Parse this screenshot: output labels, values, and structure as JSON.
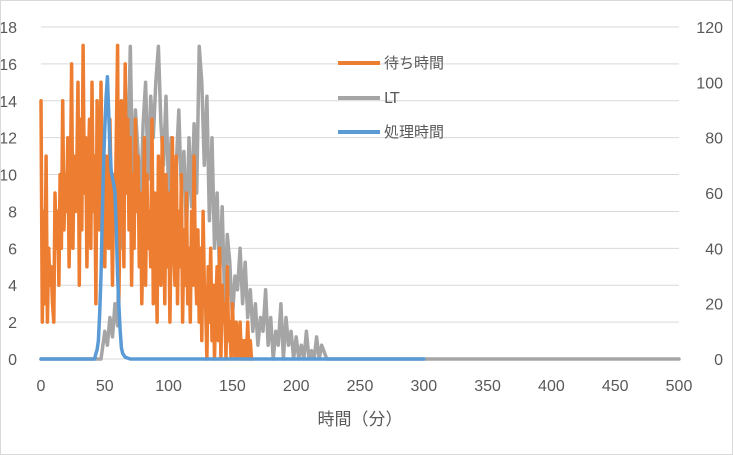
{
  "chart_data": {
    "type": "line",
    "title": "",
    "xlabel": "時間（分）",
    "ylabel": "",
    "ylabel_right": "",
    "xlim": [
      0,
      500
    ],
    "ylim": [
      0,
      18
    ],
    "ylim_right": [
      0,
      120
    ],
    "x_ticks": [
      0,
      50,
      100,
      150,
      200,
      250,
      300,
      350,
      400,
      450,
      500
    ],
    "y_ticks_left": [
      0,
      2,
      4,
      6,
      8,
      10,
      12,
      14,
      16,
      18
    ],
    "y_ticks_right": [
      0,
      20,
      40,
      60,
      80,
      100,
      120
    ],
    "grid": true,
    "legend_position": "top-center",
    "series": [
      {
        "name": "待ち時間",
        "axis": "left",
        "color": "#ED7D31",
        "x": [
          0,
          1,
          2,
          3,
          4,
          5,
          6,
          7,
          8,
          9,
          10,
          11,
          12,
          13,
          14,
          15,
          16,
          17,
          18,
          19,
          20,
          21,
          22,
          23,
          24,
          25,
          26,
          27,
          28,
          29,
          30,
          31,
          32,
          33,
          34,
          35,
          36,
          37,
          38,
          39,
          40,
          41,
          42,
          43,
          44,
          45,
          46,
          47,
          48,
          49,
          50,
          51,
          52,
          53,
          54,
          55,
          56,
          57,
          58,
          59,
          60,
          61,
          62,
          63,
          64,
          65,
          66,
          67,
          68,
          69,
          70,
          71,
          72,
          73,
          74,
          75,
          76,
          77,
          78,
          79,
          80,
          81,
          82,
          83,
          84,
          85,
          86,
          87,
          88,
          89,
          90,
          91,
          92,
          93,
          94,
          95,
          96,
          97,
          98,
          99,
          100,
          101,
          102,
          103,
          104,
          105,
          106,
          107,
          108,
          109,
          110,
          111,
          112,
          113,
          114,
          115,
          116,
          117,
          118,
          119,
          120,
          121,
          122,
          123,
          124,
          125,
          126,
          127,
          128,
          129,
          130,
          131,
          132,
          133,
          134,
          135,
          136,
          137,
          138,
          139,
          140,
          141,
          142,
          143,
          144,
          145,
          146,
          147,
          148,
          149,
          150,
          151,
          152,
          153,
          154,
          155,
          156,
          157,
          158,
          159,
          160,
          161,
          162,
          163,
          164,
          165,
          166
        ],
        "values": [
          14,
          2,
          8,
          3,
          11,
          2,
          6,
          4,
          5,
          3,
          2,
          9,
          6,
          8,
          4,
          10,
          6,
          14,
          7,
          10,
          8,
          12,
          5,
          9,
          16,
          6,
          11,
          8,
          10,
          15,
          4,
          13,
          7,
          17,
          9,
          12,
          5,
          10,
          13,
          6,
          15,
          8,
          11,
          3,
          14,
          10,
          7,
          15,
          9,
          12,
          5,
          11,
          8,
          6,
          13,
          9,
          4,
          10,
          7,
          12,
          17,
          3,
          8,
          14,
          11,
          5,
          16,
          9,
          13,
          7,
          12,
          4,
          10,
          6,
          13,
          8,
          11,
          5,
          9,
          3,
          7,
          12,
          4,
          10,
          6,
          8,
          5,
          13,
          3,
          9,
          7,
          2,
          11,
          6,
          4,
          12,
          8,
          3,
          10,
          5,
          9,
          2,
          7,
          12,
          6,
          4,
          11,
          3,
          8,
          5,
          10,
          2,
          7,
          4,
          9,
          3,
          6,
          2,
          8,
          4,
          11,
          5,
          3,
          7,
          2,
          6,
          1,
          8,
          4,
          3,
          0,
          5,
          2,
          6,
          1,
          4,
          0,
          3,
          5,
          1,
          6,
          0,
          4,
          2,
          3,
          0,
          5,
          1,
          2,
          0,
          3,
          1,
          0,
          2,
          1,
          0,
          2,
          0,
          1,
          0,
          1,
          0,
          2,
          0,
          1,
          0,
          0
        ]
      },
      {
        "name": "LT",
        "axis": "right",
        "color": "#A5A5A5",
        "x": [
          0,
          10,
          20,
          30,
          40,
          44,
          47,
          50,
          52,
          54,
          56,
          58,
          60,
          62,
          64,
          66,
          68,
          70,
          72,
          74,
          76,
          78,
          80,
          82,
          84,
          86,
          88,
          90,
          92,
          94,
          96,
          98,
          100,
          102,
          104,
          106,
          108,
          110,
          112,
          114,
          116,
          118,
          120,
          122,
          124,
          126,
          128,
          130,
          132,
          134,
          136,
          138,
          140,
          142,
          144,
          146,
          148,
          150,
          152,
          154,
          156,
          158,
          160,
          162,
          164,
          166,
          168,
          170,
          172,
          174,
          176,
          178,
          180,
          182,
          184,
          186,
          188,
          190,
          192,
          194,
          196,
          198,
          200,
          202,
          204,
          206,
          208,
          210,
          212,
          214,
          216,
          218,
          220,
          224,
          230,
          240,
          250,
          260,
          280,
          300,
          350,
          400,
          450,
          500
        ],
        "values": [
          0,
          0,
          0,
          0,
          0,
          0,
          0,
          10,
          5,
          15,
          8,
          20,
          12,
          60,
          40,
          100,
          70,
          113,
          60,
          90,
          75,
          55,
          85,
          100,
          65,
          95,
          80,
          100,
          113,
          85,
          70,
          95,
          60,
          80,
          50,
          70,
          90,
          60,
          75,
          45,
          80,
          55,
          85,
          60,
          113,
          100,
          70,
          95,
          50,
          80,
          40,
          60,
          30,
          55,
          20,
          45,
          35,
          15,
          30,
          25,
          40,
          20,
          35,
          15,
          25,
          10,
          20,
          5,
          15,
          10,
          25,
          5,
          15,
          0,
          10,
          5,
          20,
          0,
          15,
          5,
          10,
          0,
          8,
          0,
          5,
          0,
          10,
          0,
          3,
          0,
          8,
          0,
          5,
          0,
          0,
          0,
          0,
          0,
          0,
          0,
          0,
          0,
          0,
          0
        ]
      },
      {
        "name": "処理時間",
        "axis": "left",
        "color": "#5B9BD5",
        "x": [
          0,
          40,
          42,
          43,
          44,
          45,
          46,
          47,
          48,
          49,
          50,
          51,
          52,
          53,
          54,
          55,
          56,
          57,
          58,
          59,
          60,
          61,
          62,
          63,
          64,
          66,
          70,
          100,
          200,
          300
        ],
        "values": [
          0,
          0,
          0,
          0.3,
          0.5,
          1,
          2.5,
          4.5,
          7.5,
          10.5,
          12.5,
          14.2,
          15.3,
          13.5,
          11.5,
          10.2,
          9.8,
          9.5,
          9,
          7,
          4.5,
          3,
          1.6,
          0.6,
          0.3,
          0.1,
          0,
          0,
          0,
          0
        ]
      }
    ]
  }
}
